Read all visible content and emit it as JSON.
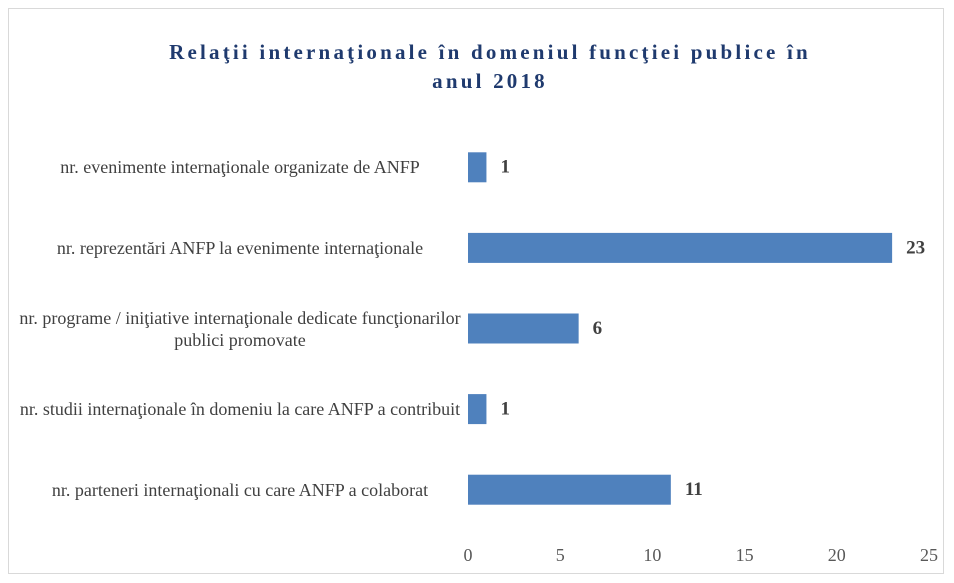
{
  "chart_data": {
    "type": "bar",
    "orientation": "horizontal",
    "title": "Relaţii internaţionale în domeniul funcţiei publice în anul 2018",
    "categories": [
      "nr. evenimente internaţionale organizate de ANFP",
      "nr. reprezentări ANFP la evenimente internaţionale",
      "nr. programe / iniţiative internaţionale dedicate funcţionarilor publici promovate",
      "nr. studii internaţionale în domeniu la care ANFP a contribuit",
      "nr. parteneri internaţionali cu care ANFP a colaborat"
    ],
    "values": [
      1,
      23,
      6,
      1,
      11
    ],
    "color": "#4f81bd",
    "xlim": [
      0,
      25
    ],
    "xticks": [
      0,
      5,
      10,
      15,
      20,
      25
    ],
    "grid": false
  }
}
